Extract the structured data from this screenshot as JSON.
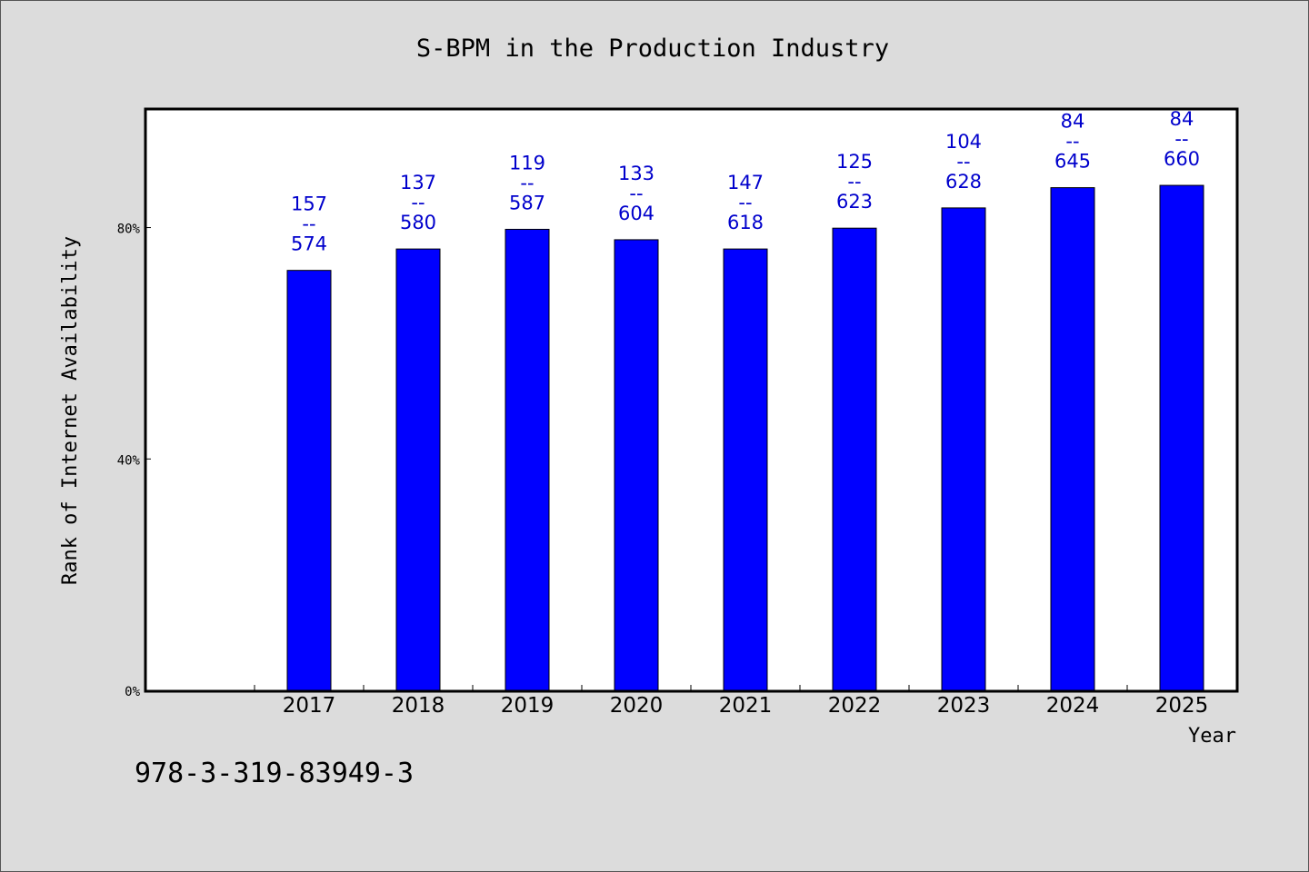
{
  "chart_data": {
    "type": "bar",
    "title": "S-BPM in the Production Industry",
    "xlabel": "Year",
    "ylabel": "Rank of Internet Availability",
    "categories": [
      "2017",
      "2018",
      "2019",
      "2020",
      "2021",
      "2022",
      "2023",
      "2024",
      "2025"
    ],
    "values": [
      72.6,
      76.3,
      79.7,
      77.9,
      76.3,
      79.9,
      83.4,
      86.9,
      87.3
    ],
    "bar_labels": [
      {
        "top": "157",
        "mid": "--",
        "bottom": "574"
      },
      {
        "top": "137",
        "mid": "--",
        "bottom": "580"
      },
      {
        "top": "119",
        "mid": "--",
        "bottom": "587"
      },
      {
        "top": "133",
        "mid": "--",
        "bottom": "604"
      },
      {
        "top": "147",
        "mid": "--",
        "bottom": "618"
      },
      {
        "top": "125",
        "mid": "--",
        "bottom": "623"
      },
      {
        "top": "104",
        "mid": "--",
        "bottom": "628"
      },
      {
        "top": "84",
        "mid": "--",
        "bottom": "645"
      },
      {
        "top": "84",
        "mid": "--",
        "bottom": "660"
      }
    ],
    "yticks": [
      {
        "value": 0,
        "label": "0%"
      },
      {
        "value": 40,
        "label": "40%"
      },
      {
        "value": 80,
        "label": "80%"
      }
    ],
    "ylim": [
      0,
      100.5
    ],
    "x_slots": 10,
    "grid": false,
    "legend": "none",
    "bar_color": "#0000ff",
    "label_color": "#0000cc"
  },
  "footer": {
    "code": "978-3-319-83949-3"
  }
}
